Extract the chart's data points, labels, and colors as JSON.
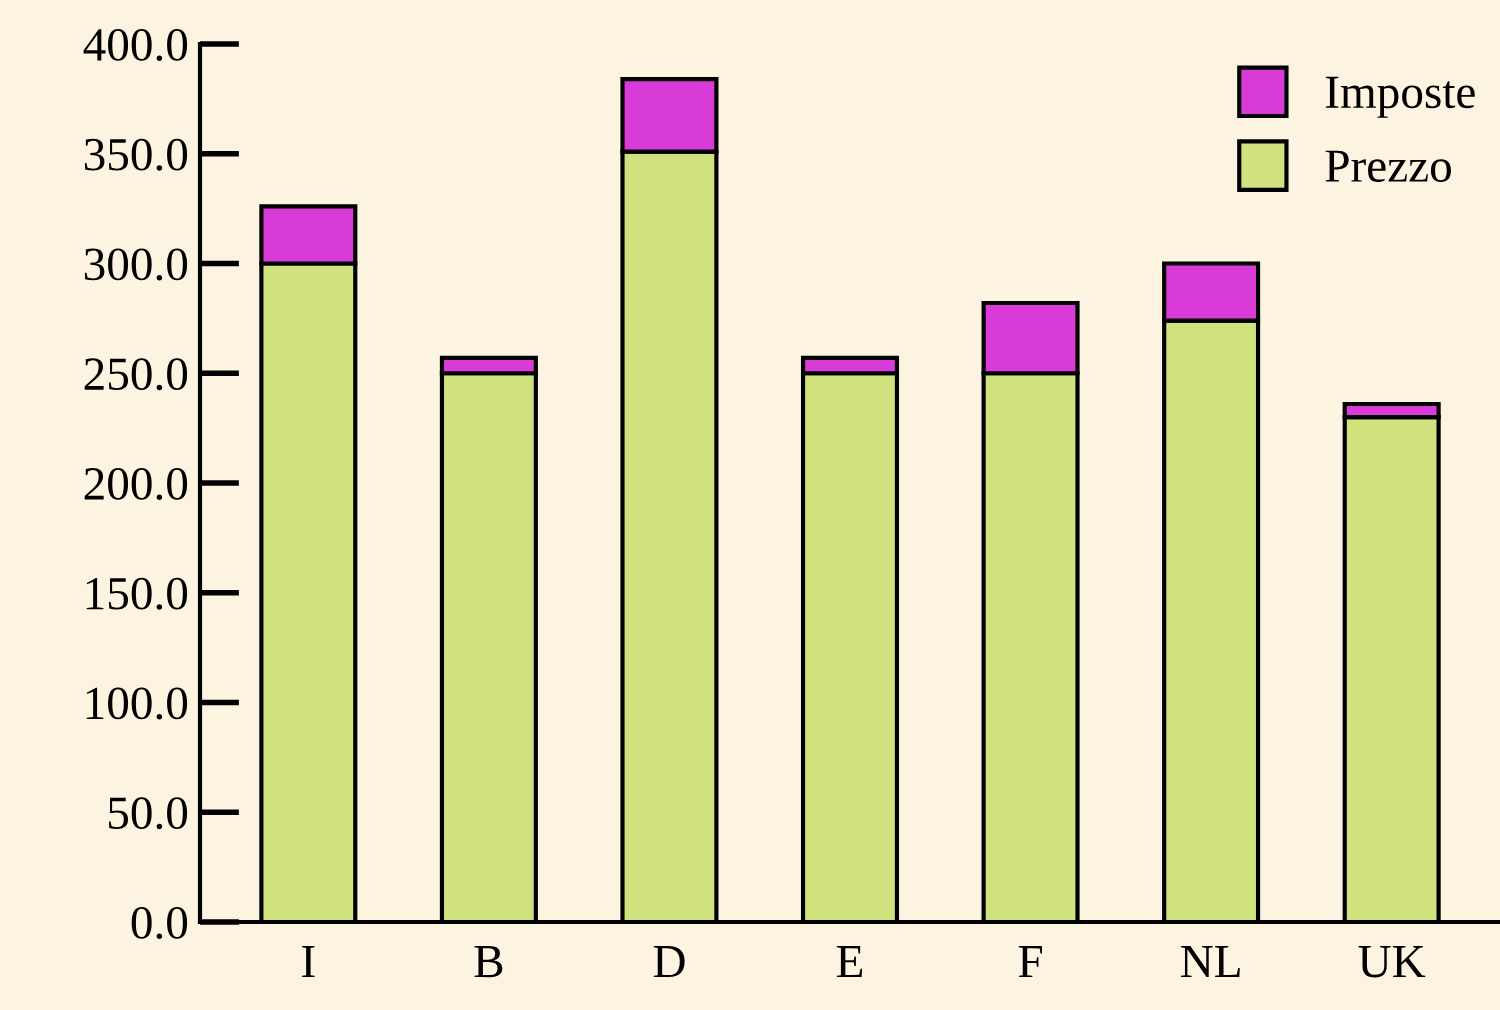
{
  "chart_data": {
    "type": "bar",
    "stacked": true,
    "categories": [
      "I",
      "B",
      "D",
      "E",
      "F",
      "NL",
      "UK"
    ],
    "series": [
      {
        "name": "Prezzo",
        "color": "#cfe27e",
        "values": [
          300,
          250,
          351,
          250,
          250,
          274,
          230
        ]
      },
      {
        "name": "Imposte",
        "color": "#d83bd8",
        "values": [
          26,
          7,
          33,
          7,
          32,
          26,
          6
        ]
      }
    ],
    "ylim": [
      0,
      400
    ],
    "yticks": [
      {
        "value": 0,
        "label": "0.0"
      },
      {
        "value": 50,
        "label": "50.0"
      },
      {
        "value": 100,
        "label": "100.0"
      },
      {
        "value": 150,
        "label": "150.0"
      },
      {
        "value": 200,
        "label": "200.0"
      },
      {
        "value": 250,
        "label": "250.0"
      },
      {
        "value": 300,
        "label": "300.0"
      },
      {
        "value": 350,
        "label": "350.0"
      },
      {
        "value": 400,
        "label": "400.0"
      }
    ],
    "legend": "top right",
    "grid": false
  }
}
